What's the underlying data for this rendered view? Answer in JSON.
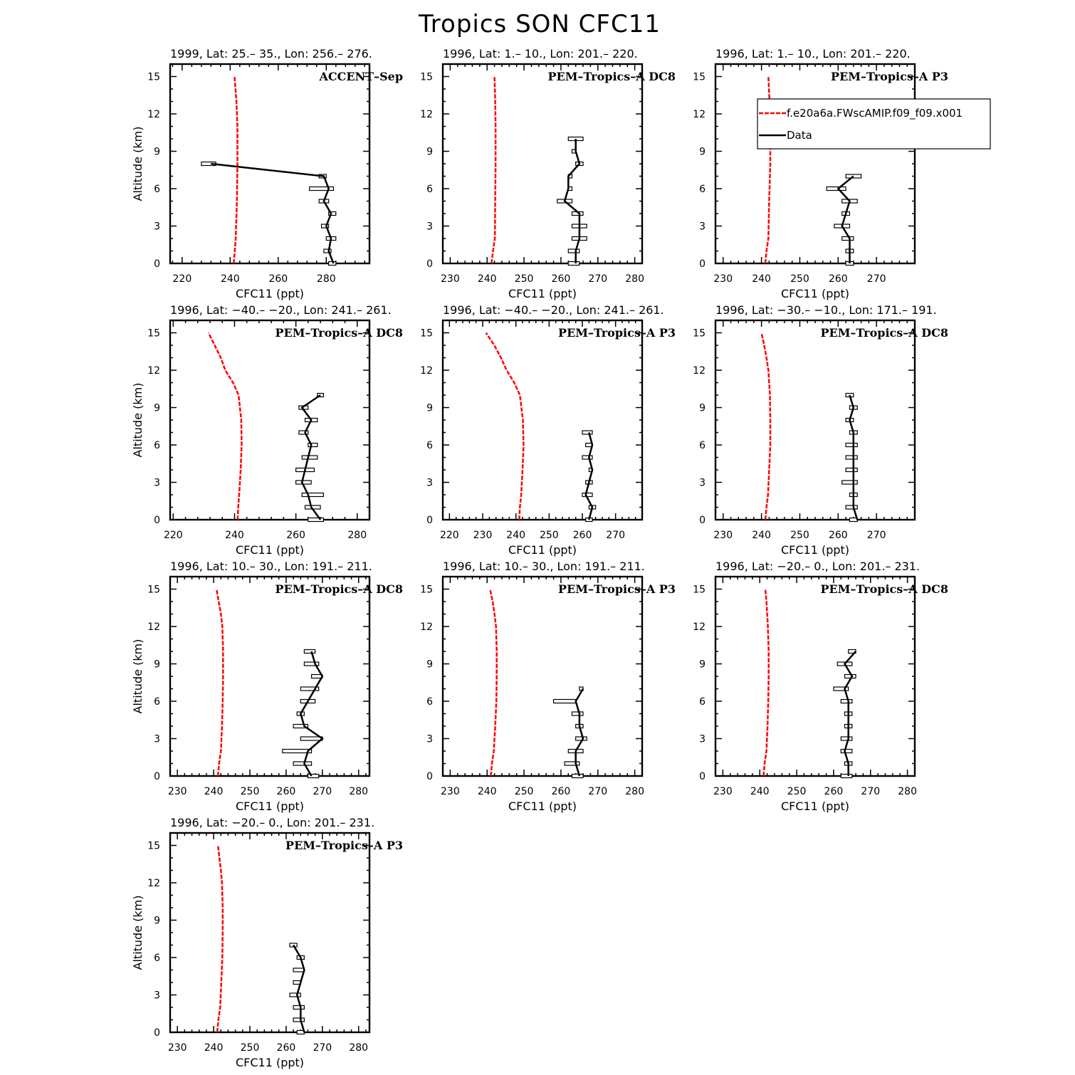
{
  "figure": {
    "title": "Tropics SON CFC11",
    "model_color": "#ff0000",
    "data_color": "#000000"
  },
  "legend": {
    "model_label": "f.e20a6a.FWscAMIP.f09_f09.x001",
    "data_label": "Data"
  },
  "chart_data": [
    {
      "type": "line",
      "title": "1999, Lat: 25.– 35., Lon: 256.– 276.",
      "campaign": "ACCENT–Sep",
      "xlabel": "CFC11 (ppt)",
      "ylabel": "Altitude (km)",
      "xlim": [
        215,
        298
      ],
      "ylim": [
        0,
        16
      ],
      "xticks": [
        220,
        240,
        260,
        280
      ],
      "yticks": [
        0,
        3,
        6,
        9,
        12,
        15
      ],
      "model": {
        "alt": [
          0,
          2,
          5,
          8,
          11,
          13,
          14,
          15
        ],
        "val": [
          241.5,
          242.3,
          242.8,
          243.0,
          243.0,
          242.6,
          242.2,
          241.8
        ]
      },
      "data": {
        "alt": [
          0,
          1,
          2,
          3,
          4,
          5,
          6,
          7,
          8
        ],
        "val": [
          283,
          281,
          282,
          280,
          282,
          279,
          281,
          279,
          232
        ],
        "lo": [
          281,
          279,
          280,
          278,
          281,
          277,
          273,
          277,
          228
        ],
        "hi": [
          284,
          282,
          284,
          281,
          284,
          281,
          283,
          280,
          234
        ]
      }
    },
    {
      "type": "line",
      "title": "1996, Lat: 1.– 10., Lon: 201.– 220.",
      "campaign": "PEM–Tropics–A DC8",
      "xlabel": "CFC11 (ppt)",
      "ylabel": "",
      "xlim": [
        228,
        282
      ],
      "ylim": [
        0,
        16
      ],
      "xticks": [
        230,
        240,
        250,
        260,
        270,
        280
      ],
      "yticks": [
        0,
        3,
        6,
        9,
        12,
        15
      ],
      "model": {
        "alt": [
          0,
          1,
          2,
          5,
          8,
          11,
          13,
          15
        ],
        "val": [
          241.2,
          241.6,
          242.1,
          242.2,
          242.3,
          242.3,
          242.2,
          242.0
        ]
      },
      "data": {
        "alt": [
          0,
          1,
          2,
          3,
          4,
          5,
          6,
          7,
          8,
          9,
          10
        ],
        "val": [
          264,
          264,
          265,
          265,
          265,
          261,
          262,
          262,
          265,
          264,
          264
        ],
        "lo": [
          262,
          262,
          263,
          263,
          263,
          259,
          262,
          262,
          264,
          263,
          262
        ],
        "hi": [
          265,
          265,
          267,
          267,
          266,
          263,
          263,
          263,
          266,
          264,
          266
        ]
      }
    },
    {
      "type": "line",
      "title": "1996, Lat: 1.– 10., Lon: 201.– 220.",
      "campaign": "PEM–Tropics–A P3",
      "xlabel": "CFC11 (ppt)",
      "ylabel": "",
      "xlim": [
        228,
        280
      ],
      "ylim": [
        0,
        16
      ],
      "xticks": [
        230,
        240,
        250,
        260,
        270
      ],
      "yticks": [
        0,
        3,
        6,
        9,
        12,
        15
      ],
      "model": {
        "alt": [
          0,
          1,
          2,
          5,
          8,
          11,
          13,
          15
        ],
        "val": [
          241.0,
          241.3,
          241.8,
          242.0,
          242.3,
          242.3,
          242.1,
          241.8
        ]
      },
      "data": {
        "alt": [
          0,
          1,
          2,
          3,
          4,
          5,
          6,
          7
        ],
        "val": [
          263,
          263,
          263,
          261,
          262,
          263,
          260,
          264
        ],
        "lo": [
          262,
          262,
          261,
          259,
          261,
          261,
          257,
          262
        ],
        "hi": [
          264,
          264,
          264,
          263,
          263,
          265,
          262,
          266
        ]
      }
    },
    {
      "type": "line",
      "title": "1996, Lat: −40.– −20., Lon: 241.– 261.",
      "campaign": "PEM–Tropics–A DC8",
      "xlabel": "CFC11 (ppt)",
      "ylabel": "Altitude (km)",
      "xlim": [
        219,
        284
      ],
      "ylim": [
        0,
        16
      ],
      "xticks": [
        220,
        240,
        260,
        280
      ],
      "yticks": [
        0,
        3,
        6,
        9,
        12,
        15
      ],
      "model": {
        "alt": [
          0,
          1,
          2,
          4,
          6,
          8,
          10,
          11,
          12,
          13,
          14,
          15
        ],
        "val": [
          241.0,
          241.2,
          241.5,
          242.0,
          242.3,
          242.2,
          241.3,
          239.5,
          237.0,
          235.5,
          233.5,
          231.5
        ]
      },
      "data": {
        "alt": [
          0,
          1,
          2,
          3,
          4,
          5,
          6,
          7,
          8,
          9,
          10
        ],
        "val": [
          268,
          265,
          264,
          262,
          263,
          264,
          265,
          263,
          265,
          262,
          268
        ],
        "lo": [
          264,
          263,
          262,
          260,
          260,
          262,
          264,
          261,
          263,
          261,
          267
        ],
        "hi": [
          269,
          268,
          269,
          265,
          266,
          267,
          267,
          264,
          267,
          264,
          269
        ]
      }
    },
    {
      "type": "line",
      "title": "1996, Lat: −40.– −20., Lon: 241.– 261.",
      "campaign": "PEM–Tropics–A P3",
      "xlabel": "CFC11 (ppt)",
      "ylabel": "",
      "xlim": [
        218,
        278
      ],
      "ylim": [
        0,
        16
      ],
      "xticks": [
        220,
        230,
        240,
        250,
        260,
        270
      ],
      "yticks": [
        0,
        3,
        6,
        9,
        12,
        15
      ],
      "model": {
        "alt": [
          0,
          1,
          2,
          4,
          6,
          8,
          10,
          11,
          12,
          13,
          14,
          15
        ],
        "val": [
          241.0,
          241.2,
          241.6,
          242.0,
          242.3,
          242.1,
          241.2,
          239.5,
          237.2,
          235.5,
          233.5,
          231.0
        ]
      },
      "data": {
        "alt": [
          0,
          1,
          2,
          3,
          4,
          5,
          6,
          7
        ],
        "val": [
          262,
          263,
          261,
          262,
          263,
          262,
          263,
          262
        ],
        "lo": [
          261,
          262,
          260,
          261,
          262,
          260,
          261,
          260
        ],
        "hi": [
          263,
          264,
          263,
          263,
          263,
          263,
          263,
          263
        ]
      }
    },
    {
      "type": "line",
      "title": "1996, Lat: −30.– −10., Lon: 171.– 191.",
      "campaign": "PEM–Tropics–A DC8",
      "xlabel": "CFC11 (ppt)",
      "ylabel": "",
      "xlim": [
        228,
        280
      ],
      "ylim": [
        0,
        16
      ],
      "xticks": [
        230,
        240,
        250,
        260,
        270
      ],
      "yticks": [
        0,
        3,
        6,
        9,
        12,
        15
      ],
      "model": {
        "alt": [
          0,
          1,
          2,
          4,
          6,
          8,
          10,
          12,
          13,
          14,
          15
        ],
        "val": [
          241.0,
          241.3,
          241.7,
          242.0,
          242.3,
          242.3,
          242.2,
          241.8,
          241.3,
          240.7,
          240.0
        ]
      },
      "data": {
        "alt": [
          0,
          1,
          2,
          3,
          4,
          5,
          6,
          7,
          8,
          9,
          10
        ],
        "val": [
          265,
          264,
          264,
          264,
          264,
          264,
          264,
          264,
          263,
          264,
          263
        ],
        "lo": [
          263,
          262,
          263,
          261,
          262,
          262,
          262,
          263,
          262,
          263,
          262
        ],
        "hi": [
          265,
          265,
          265,
          265,
          265,
          265,
          265,
          265,
          264,
          265,
          264
        ]
      }
    },
    {
      "type": "line",
      "title": "1996, Lat: 10.– 30., Lon: 191.– 211.",
      "campaign": "PEM–Tropics–A DC8",
      "xlabel": "CFC11 (ppt)",
      "ylabel": "Altitude (km)",
      "xlim": [
        228,
        283
      ],
      "ylim": [
        0,
        16
      ],
      "xticks": [
        230,
        240,
        250,
        260,
        270,
        280
      ],
      "yticks": [
        0,
        3,
        6,
        9,
        12,
        15
      ],
      "model": {
        "alt": [
          0,
          1,
          2,
          4,
          6,
          8,
          10,
          12,
          13,
          14,
          15
        ],
        "val": [
          241.2,
          241.5,
          242.0,
          242.3,
          242.5,
          242.6,
          242.6,
          242.4,
          242.0,
          241.4,
          240.8
        ]
      },
      "data": {
        "alt": [
          0,
          1,
          2,
          3,
          4,
          5,
          6,
          7,
          8,
          9,
          10
        ],
        "val": [
          267,
          265,
          266,
          270,
          265,
          264,
          266,
          268,
          270,
          268,
          267
        ],
        "lo": [
          266,
          262,
          259,
          264,
          262,
          263,
          264,
          264,
          267,
          265,
          265
        ],
        "hi": [
          269,
          267,
          267,
          270,
          266,
          265,
          268,
          269,
          270,
          269,
          268
        ]
      }
    },
    {
      "type": "line",
      "title": "1996, Lat: 10.– 30., Lon: 191.– 211.",
      "campaign": "PEM–Tropics–A P3",
      "xlabel": "CFC11 (ppt)",
      "ylabel": "",
      "xlim": [
        228,
        282
      ],
      "ylim": [
        0,
        16
      ],
      "xticks": [
        230,
        240,
        250,
        260,
        270,
        280
      ],
      "yticks": [
        0,
        3,
        6,
        9,
        12,
        15
      ],
      "model": {
        "alt": [
          0,
          1,
          2,
          4,
          6,
          8,
          10,
          12,
          13,
          14,
          15
        ],
        "val": [
          241.0,
          241.3,
          241.8,
          242.2,
          242.5,
          242.6,
          242.6,
          242.4,
          242.0,
          241.5,
          240.8
        ]
      },
      "data": {
        "alt": [
          0,
          1,
          2,
          3,
          4,
          5,
          6,
          7
        ],
        "val": [
          265,
          264,
          264,
          266,
          265,
          265,
          264,
          266
        ],
        "lo": [
          263,
          261,
          262,
          264,
          264,
          263,
          258,
          265
        ],
        "hi": [
          266,
          265,
          266,
          267,
          266,
          266,
          264,
          266
        ]
      }
    },
    {
      "type": "line",
      "title": "1996, Lat: −20.– 0., Lon: 201.– 231.",
      "campaign": "PEM–Tropics–A DC8",
      "xlabel": "CFC11 (ppt)",
      "ylabel": "",
      "xlim": [
        228,
        282
      ],
      "ylim": [
        0,
        16
      ],
      "xticks": [
        230,
        240,
        250,
        260,
        270,
        280
      ],
      "yticks": [
        0,
        3,
        6,
        9,
        12,
        15
      ],
      "model": {
        "alt": [
          0,
          1,
          2,
          4,
          6,
          8,
          10,
          12,
          13,
          14,
          15
        ],
        "val": [
          241.0,
          241.3,
          241.8,
          242.1,
          242.3,
          242.4,
          242.4,
          242.2,
          242.0,
          241.8,
          241.5
        ]
      },
      "data": {
        "alt": [
          0,
          1,
          2,
          3,
          4,
          5,
          6,
          7,
          8,
          9,
          10
        ],
        "val": [
          264,
          264,
          263,
          264,
          264,
          264,
          264,
          263,
          265,
          263,
          266
        ],
        "lo": [
          262,
          263,
          262,
          262,
          263,
          263,
          262,
          260,
          263,
          261,
          264
        ],
        "hi": [
          265,
          265,
          265,
          265,
          265,
          265,
          265,
          264,
          266,
          265,
          266
        ]
      }
    },
    {
      "type": "line",
      "title": "1996, Lat: −20.– 0., Lon: 201.– 231.",
      "campaign": "PEM–Tropics–A P3",
      "xlabel": "CFC11 (ppt)",
      "ylabel": "Altitude (km)",
      "xlim": [
        228,
        283
      ],
      "ylim": [
        0,
        16
      ],
      "xticks": [
        230,
        240,
        250,
        260,
        270,
        280
      ],
      "yticks": [
        0,
        3,
        6,
        9,
        12,
        15
      ],
      "model": {
        "alt": [
          0,
          1,
          2,
          4,
          6,
          8,
          10,
          12,
          13,
          14,
          15
        ],
        "val": [
          241.0,
          241.3,
          241.8,
          242.1,
          242.4,
          242.5,
          242.5,
          242.3,
          242.0,
          241.6,
          241.2
        ]
      },
      "data": {
        "alt": [
          0,
          1,
          2,
          3,
          4,
          5,
          6,
          7
        ],
        "val": [
          265,
          264,
          264,
          263,
          264,
          265,
          264,
          262
        ],
        "lo": [
          263,
          262,
          262,
          261,
          262,
          262,
          263,
          261
        ],
        "hi": [
          265,
          265,
          265,
          264,
          264,
          265,
          265,
          263
        ]
      }
    }
  ]
}
